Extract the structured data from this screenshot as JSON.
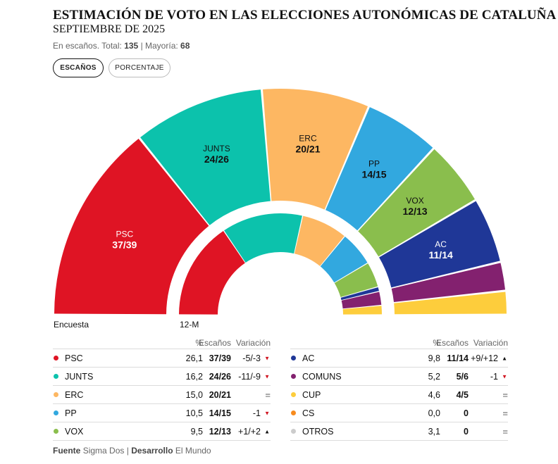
{
  "header": {
    "title": "ESTIMACIÓN DE VOTO EN LAS ELECCIONES AUTONÓMICAS DE CATALUÑA",
    "subtitle": "SEPTIEMBRE DE 2025",
    "meta_prefix": "En escaños. Total:",
    "total": "135",
    "meta_sep": "| Mayoría:",
    "majority": "68"
  },
  "toggles": {
    "seats_label": "ESCAÑOS",
    "percent_label": "PORCENTAJE",
    "active": "seats"
  },
  "captions": {
    "outer": "Encuesta",
    "inner": "12-M"
  },
  "table": {
    "headers": {
      "pct": "%",
      "seats": "Escaños",
      "var": "Variación"
    }
  },
  "colors": {
    "PSC": "#df1424",
    "JUNTS": "#0cc2ac",
    "ERC": "#fdb762",
    "PP": "#32a8df",
    "VOX": "#8abe4d",
    "AC": "#1f3797",
    "COMUNS": "#83216f",
    "CUP": "#fdcd3c",
    "CS": "#f78b1d",
    "OTROS": "#cccccc"
  },
  "chart_data": {
    "type": "hemicycle",
    "title": "ESTIMACIÓN DE VOTO EN LAS ELECCIONES AUTONÓMICAS DE CATALUÑA",
    "total_seats": 135,
    "majority": 68,
    "outer_label": "Encuesta",
    "inner_label": "12-M",
    "outer": [
      {
        "party": "PSC",
        "seats": 38,
        "label": "37/39"
      },
      {
        "party": "JUNTS",
        "seats": 25,
        "label": "24/26"
      },
      {
        "party": "ERC",
        "seats": 20.5,
        "label": "20/21"
      },
      {
        "party": "PP",
        "seats": 14.5,
        "label": "14/15"
      },
      {
        "party": "VOX",
        "seats": 12.5,
        "label": "12/13"
      },
      {
        "party": "AC",
        "seats": 12.5,
        "label": "11/14"
      },
      {
        "party": "COMUNS",
        "seats": 5.5,
        "label": ""
      },
      {
        "party": "CUP",
        "seats": 4.5,
        "label": ""
      }
    ],
    "inner": [
      {
        "party": "PSC",
        "seats": 42
      },
      {
        "party": "JUNTS",
        "seats": 35
      },
      {
        "party": "ERC",
        "seats": 20
      },
      {
        "party": "PP",
        "seats": 15
      },
      {
        "party": "VOX",
        "seats": 11
      },
      {
        "party": "AC",
        "seats": 2
      },
      {
        "party": "COMUNS",
        "seats": 6
      },
      {
        "party": "CUP",
        "seats": 4
      }
    ],
    "rows": [
      {
        "party": "PSC",
        "pct": "26,1",
        "seats": "37/39",
        "variation": "-5/-3",
        "trend": "down"
      },
      {
        "party": "JUNTS",
        "pct": "16,2",
        "seats": "24/26",
        "variation": "-11/-9",
        "trend": "down"
      },
      {
        "party": "ERC",
        "pct": "15,0",
        "seats": "20/21",
        "variation": "",
        "trend": "equal"
      },
      {
        "party": "PP",
        "pct": "10,5",
        "seats": "14/15",
        "variation": "-1",
        "trend": "down"
      },
      {
        "party": "VOX",
        "pct": "9,5",
        "seats": "12/13",
        "variation": "+1/+2",
        "trend": "up"
      },
      {
        "party": "AC",
        "pct": "9,8",
        "seats": "11/14",
        "variation": "+9/+12",
        "trend": "up"
      },
      {
        "party": "COMUNS",
        "pct": "5,2",
        "seats": "5/6",
        "variation": "-1",
        "trend": "down"
      },
      {
        "party": "CUP",
        "pct": "4,6",
        "seats": "4/5",
        "variation": "",
        "trend": "equal"
      },
      {
        "party": "CS",
        "pct": "0,0",
        "seats": "0",
        "variation": "",
        "trend": "equal"
      },
      {
        "party": "OTROS",
        "pct": "3,1",
        "seats": "0",
        "variation": "",
        "trend": "equal"
      }
    ]
  },
  "footer": {
    "source_label": "Fuente",
    "source": "Sigma Dos",
    "sep": "|",
    "dev_label": "Desarrollo",
    "dev": "El Mundo"
  }
}
